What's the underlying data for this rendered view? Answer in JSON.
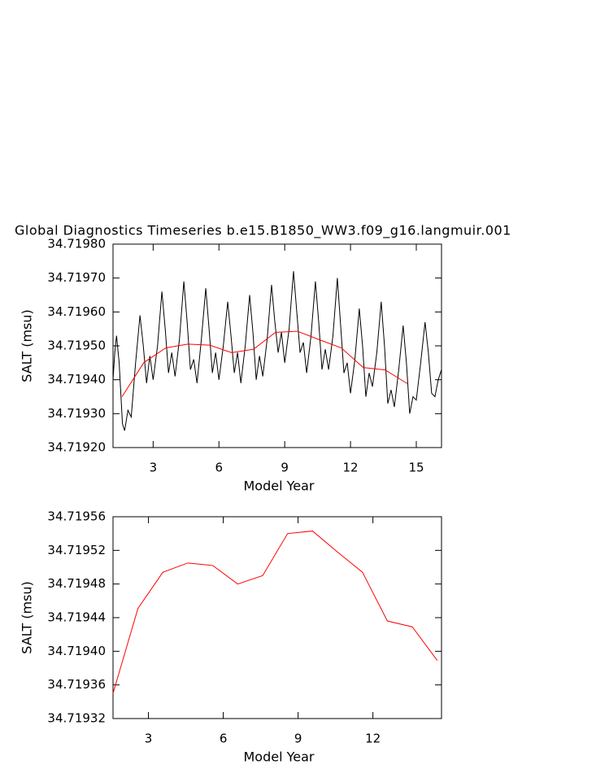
{
  "chart_data": [
    {
      "type": "line",
      "title": "Global Diagnostics Timeseries b.e15.B1850_WW3.f09_g16.langmuir.001",
      "x_label": "Model Year",
      "y_label": "SALT (msu)",
      "xlim": [
        1.17,
        16.15
      ],
      "xticks": [
        3,
        6,
        9,
        12,
        15
      ],
      "ylim": [
        34.7192,
        34.7198
      ],
      "yticks": [
        {
          "value": 34.7192,
          "label": "34.71920"
        },
        {
          "value": 34.7193,
          "label": "34.71930"
        },
        {
          "value": 34.7194,
          "label": "34.71940"
        },
        {
          "value": 34.7195,
          "label": "34.71950"
        },
        {
          "value": 34.7196,
          "label": "34.71960"
        },
        {
          "value": 34.7197,
          "label": "34.71970"
        },
        {
          "value": 34.7198,
          "label": "34.71980"
        }
      ],
      "series": [
        {
          "color": "#000000",
          "x": [
            1.17,
            1.25,
            1.33,
            1.45,
            1.6,
            1.7,
            1.85,
            2.0,
            2.2,
            2.4,
            2.55,
            2.7,
            2.85,
            3.0,
            3.2,
            3.4,
            3.55,
            3.7,
            3.85,
            4.0,
            4.2,
            4.4,
            4.55,
            4.7,
            4.85,
            5.0,
            5.2,
            5.4,
            5.55,
            5.7,
            5.85,
            6.0,
            6.2,
            6.4,
            6.55,
            6.7,
            6.85,
            7.0,
            7.2,
            7.4,
            7.55,
            7.7,
            7.85,
            8.0,
            8.2,
            8.4,
            8.55,
            8.7,
            8.85,
            9.0,
            9.2,
            9.4,
            9.55,
            9.7,
            9.85,
            10.0,
            10.2,
            10.4,
            10.55,
            10.7,
            10.85,
            11.0,
            11.2,
            11.4,
            11.55,
            11.7,
            11.85,
            12.0,
            12.2,
            12.4,
            12.55,
            12.7,
            12.85,
            13.0,
            13.2,
            13.4,
            13.55,
            13.7,
            13.85,
            14.0,
            14.2,
            14.4,
            14.55,
            14.7,
            14.85,
            15.0,
            15.2,
            15.4,
            15.55,
            15.7,
            15.85,
            16.0,
            16.15
          ],
          "values": [
            34.7194,
            34.71948,
            34.71953,
            34.71945,
            34.71927,
            34.71925,
            34.71931,
            34.71929,
            34.71945,
            34.71959,
            34.7195,
            34.71939,
            34.71947,
            34.7194,
            34.7195,
            34.71966,
            34.71955,
            34.71942,
            34.71948,
            34.71941,
            34.71952,
            34.71969,
            34.71957,
            34.71943,
            34.71946,
            34.71939,
            34.71952,
            34.71967,
            34.71955,
            34.71942,
            34.71948,
            34.7194,
            34.7195,
            34.71963,
            34.71953,
            34.71942,
            34.71948,
            34.71939,
            34.7195,
            34.71965,
            34.71954,
            34.7194,
            34.71947,
            34.71941,
            34.71952,
            34.71968,
            34.71957,
            34.71948,
            34.71954,
            34.71945,
            34.71955,
            34.71972,
            34.7196,
            34.71948,
            34.71951,
            34.71942,
            34.71953,
            34.71969,
            34.71957,
            34.71943,
            34.71949,
            34.71943,
            34.71953,
            34.7197,
            34.71956,
            34.71942,
            34.71945,
            34.71936,
            34.71946,
            34.71961,
            34.7195,
            34.71935,
            34.71942,
            34.71938,
            34.71948,
            34.71963,
            34.7195,
            34.71933,
            34.71937,
            34.71932,
            34.71943,
            34.71956,
            34.71945,
            34.7193,
            34.71935,
            34.71934,
            34.71945,
            34.71957,
            34.71948,
            34.71936,
            34.71935,
            34.7194,
            34.71943
          ]
        },
        {
          "color": "#ff0000",
          "x": [
            1.58,
            2.58,
            3.58,
            4.58,
            5.58,
            6.58,
            7.58,
            8.58,
            9.58,
            10.58,
            11.58,
            12.58,
            13.58,
            14.58
          ],
          "values": [
            34.71935,
            34.719451,
            34.719494,
            34.719505,
            34.719502,
            34.71948,
            34.71949,
            34.71954,
            34.719543,
            34.719518,
            34.719494,
            34.719436,
            34.719429,
            34.719389
          ]
        }
      ]
    },
    {
      "type": "line",
      "x_label": "Model Year",
      "y_label": "SALT (msu)",
      "xlim": [
        1.58,
        14.75
      ],
      "xticks": [
        3,
        6,
        9,
        12
      ],
      "ylim": [
        34.71932,
        34.71956
      ],
      "yticks": [
        34.71932,
        34.71936,
        {
          "value": 34.7194,
          "label": "34.71940"
        },
        34.71944,
        34.71948,
        34.71952,
        34.71956
      ],
      "series": [
        {
          "color": "#ff0000",
          "x": [
            1.58,
            2.58,
            3.58,
            4.58,
            5.58,
            6.58,
            7.58,
            8.58,
            9.58,
            10.58,
            11.58,
            12.58,
            13.58,
            14.58
          ],
          "values": [
            34.71935,
            34.719451,
            34.719494,
            34.719505,
            34.719502,
            34.71948,
            34.71949,
            34.71954,
            34.719543,
            34.719518,
            34.719494,
            34.719436,
            34.719429,
            34.719389
          ]
        }
      ]
    }
  ]
}
